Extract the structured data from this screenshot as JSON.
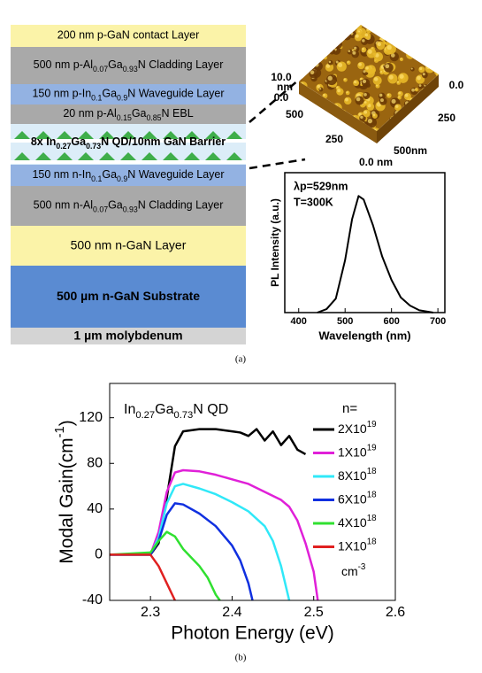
{
  "layer_stack": {
    "layers": [
      {
        "text": [
          "200 nm p-GaN contact Layer"
        ],
        "color": "#fbf3a8"
      },
      {
        "text": [
          "500 nm p-Al",
          "0.07",
          "Ga",
          "0.93",
          "N Cladding Layer"
        ],
        "color": "#a9a9a9"
      },
      {
        "text": [
          "150 nm p-In",
          "0.1",
          "Ga",
          "0.9",
          "N Waveguide Layer"
        ],
        "color": "#93b2e2"
      },
      {
        "text": [
          "20 nm p-Al",
          "0.15",
          "Ga",
          "0.85",
          "N EBL"
        ],
        "color": "#a9a9a9"
      },
      {
        "text": [
          "8x In",
          "0.27",
          "Ga",
          "0.73",
          "N QD/10nm GaN Barrier"
        ],
        "color": "#dcedf8",
        "bold": true
      },
      {
        "text": [
          "150 nm n-In",
          "0.1",
          "Ga",
          "0.9",
          "N Waveguide Layer"
        ],
        "color": "#93b2e2"
      },
      {
        "text": [
          "500 nm n-Al",
          "0.07",
          "Ga",
          "0.93",
          "N Cladding Layer"
        ],
        "color": "#a9a9a9"
      },
      {
        "text": [
          "500 nm n-GaN Layer"
        ],
        "color": "#fbf3a8"
      },
      {
        "text": [
          "500 µm n-GaN Substrate"
        ],
        "color": "#5a8bd2",
        "bold": true
      },
      {
        "text": [
          "1 µm molybdenum"
        ],
        "color": "#d4d4d4",
        "bold": true
      }
    ]
  },
  "afm": {
    "labels": [
      "10.0",
      "nm",
      "0.0",
      "500",
      "250",
      "500",
      "nm",
      "0.0 nm",
      "0.0",
      "250"
    ]
  },
  "panel_labels": [
    "(a)",
    "(b)"
  ],
  "chart_data": [
    {
      "type": "line",
      "annotations": [
        "λp=529nm",
        "T=300K"
      ],
      "xlabel": "Wavelength (nm)",
      "ylabel": "PL Intensity (a.u.)",
      "xlim": [
        370,
        715
      ],
      "ylim": [
        0,
        1.2
      ],
      "xticks": [
        400,
        500,
        600,
        700
      ],
      "color": "#000000",
      "x": [
        440,
        460,
        480,
        500,
        515,
        529,
        540,
        560,
        580,
        600,
        620,
        640,
        660,
        690
      ],
      "values": [
        0,
        0.03,
        0.12,
        0.45,
        0.8,
        1.0,
        0.97,
        0.75,
        0.48,
        0.28,
        0.13,
        0.06,
        0.02,
        0
      ]
    },
    {
      "type": "line",
      "title": [
        "In",
        "0.27",
        "Ga",
        "0.73",
        "N QD"
      ],
      "xlabel": "Photon Energy (eV)",
      "ylabel": [
        "Modal Gain(cm",
        "-1",
        ")"
      ],
      "legend_title": "n=",
      "legend_footer": [
        "cm",
        "-3"
      ],
      "xlim": [
        2.25,
        2.6
      ],
      "ylim": [
        -40,
        150
      ],
      "xticks": [
        2.3,
        2.4,
        2.5,
        2.6
      ],
      "yticks": [
        -40,
        0,
        40,
        80,
        120
      ],
      "series": [
        {
          "name": [
            "2X10",
            "19"
          ],
          "color": "#000000",
          "x": [
            2.25,
            2.3,
            2.31,
            2.32,
            2.33,
            2.34,
            2.36,
            2.38,
            2.4,
            2.41,
            2.42,
            2.43,
            2.44,
            2.45,
            2.46,
            2.47,
            2.48,
            2.49
          ],
          "values": [
            0,
            0,
            10,
            50,
            95,
            108,
            110,
            110,
            108,
            107,
            104,
            110,
            100,
            108,
            96,
            104,
            92,
            88
          ]
        },
        {
          "name": [
            "1X10",
            "19"
          ],
          "color": "#e020d8",
          "x": [
            2.25,
            2.3,
            2.31,
            2.32,
            2.33,
            2.34,
            2.36,
            2.38,
            2.4,
            2.42,
            2.44,
            2.46,
            2.47,
            2.48,
            2.49,
            2.5,
            2.505
          ],
          "values": [
            0,
            0,
            20,
            55,
            72,
            74,
            73,
            70,
            66,
            62,
            55,
            48,
            42,
            30,
            10,
            -15,
            -40
          ]
        },
        {
          "name": [
            "8X10",
            "18"
          ],
          "color": "#30e8f8",
          "x": [
            2.25,
            2.3,
            2.31,
            2.32,
            2.33,
            2.34,
            2.36,
            2.38,
            2.4,
            2.42,
            2.44,
            2.45,
            2.46,
            2.47
          ],
          "values": [
            0,
            0,
            15,
            45,
            60,
            62,
            58,
            53,
            46,
            38,
            25,
            12,
            -10,
            -40
          ]
        },
        {
          "name": [
            "6X10",
            "18"
          ],
          "color": "#1030e0",
          "x": [
            2.25,
            2.3,
            2.31,
            2.32,
            2.33,
            2.34,
            2.36,
            2.38,
            2.4,
            2.41,
            2.42,
            2.425
          ],
          "values": [
            0,
            0,
            12,
            35,
            45,
            44,
            36,
            25,
            8,
            -5,
            -25,
            -40
          ]
        },
        {
          "name": [
            "4X10",
            "18"
          ],
          "color": "#30e030",
          "x": [
            2.25,
            2.3,
            2.31,
            2.32,
            2.33,
            2.34,
            2.36,
            2.37,
            2.38,
            2.385
          ],
          "values": [
            0,
            2,
            12,
            20,
            16,
            5,
            -10,
            -20,
            -35,
            -40
          ]
        },
        {
          "name": [
            "1X10",
            "18"
          ],
          "color": "#e02020",
          "x": [
            2.25,
            2.3,
            2.31,
            2.32,
            2.33
          ],
          "values": [
            0,
            0,
            -10,
            -25,
            -40
          ]
        }
      ]
    }
  ]
}
